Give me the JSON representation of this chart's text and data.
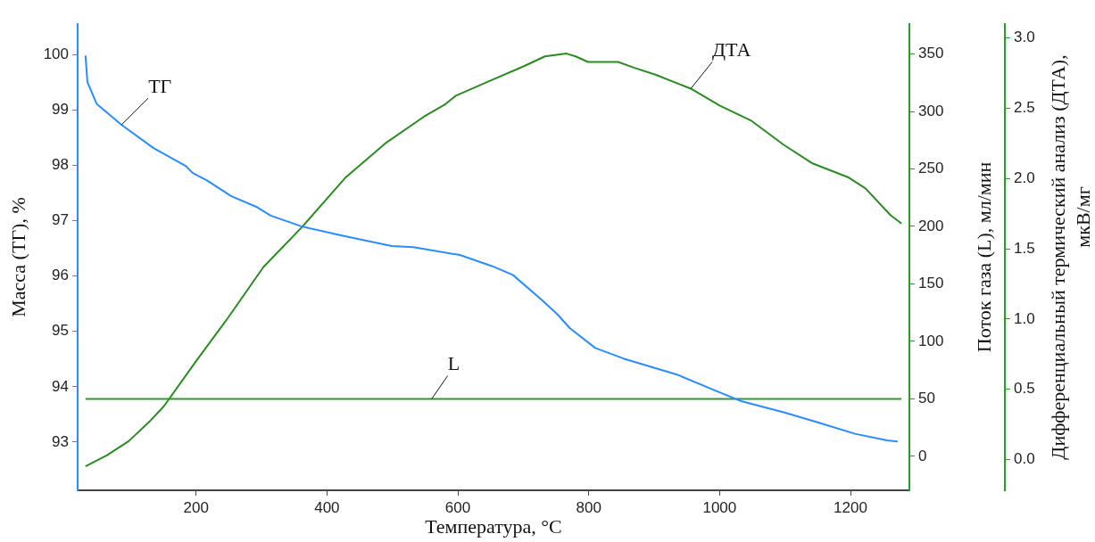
{
  "chart_data": {
    "type": "line",
    "xlabel": "Температура, °C",
    "ylabel": "Масса (ТГ), %",
    "y2label": "Поток газа (L), мл/мин",
    "y3label": "Дифференциальный термический анализ (ДТА), мкВ/мг",
    "xlim": [
      19,
      1290
    ],
    "xticks": [
      200,
      400,
      600,
      800,
      1000,
      1200
    ],
    "ylim": [
      92.13,
      100.55
    ],
    "yticks": [
      93,
      94,
      95,
      96,
      97,
      98,
      99,
      100
    ],
    "y2lim": [
      -29.5,
      376
    ],
    "y2ticks": [
      0,
      50,
      100,
      150,
      200,
      250,
      300,
      350
    ],
    "y3lim": [
      -0.22,
      3.1
    ],
    "y3ticks": [
      {
        "value": 0,
        "label": "0.0"
      },
      {
        "value": 0.5,
        "label": "0.5"
      },
      {
        "value": 1,
        "label": "1.0"
      },
      {
        "value": 1.5,
        "label": "1.5"
      },
      {
        "value": 2,
        "label": "2.0"
      },
      {
        "value": 2.5,
        "label": "2.5"
      },
      {
        "value": 3,
        "label": "3.0"
      }
    ],
    "marker": "none",
    "line_style": "solid",
    "series": [
      {
        "name": "ТГ",
        "color": "#2b8cff",
        "x": [
          31,
          34,
          48,
          86,
          135,
          184,
          195,
          216,
          254,
          292,
          314,
          363,
          423,
          499,
          532,
          603,
          652,
          684,
          728,
          752,
          771,
          810,
          853,
          935,
          1000,
          1033,
          1098,
          1152,
          1207,
          1256,
          1272
        ],
        "values": [
          99.98,
          99.5,
          99.11,
          98.73,
          98.31,
          97.99,
          97.86,
          97.73,
          97.44,
          97.25,
          97.09,
          96.89,
          96.73,
          96.54,
          96.52,
          96.38,
          96.18,
          96.02,
          95.57,
          95.31,
          95.06,
          94.7,
          94.51,
          94.22,
          93.9,
          93.74,
          93.54,
          93.35,
          93.15,
          93.03,
          93.01
        ]
      },
      {
        "name": "L",
        "color": "#2e9a2e",
        "axis": "y2",
        "x": [
          31,
          560,
          1278
        ],
        "values": [
          50,
          50,
          50
        ]
      },
      {
        "name": "ДТА",
        "color": "#2b8a22",
        "axis": "y3",
        "x": [
          31,
          64,
          97,
          129,
          151,
          200,
          249,
          303,
          361,
          429,
          489,
          548,
          581,
          597,
          646,
          701,
          733,
          766,
          780,
          799,
          815,
          845,
          869,
          902,
          956,
          1000,
          1049,
          1098,
          1141,
          1196,
          1223,
          1261,
          1278
        ],
        "values": [
          -0.05,
          0.03,
          0.13,
          0.27,
          0.38,
          0.7,
          1.01,
          1.37,
          1.65,
          2.01,
          2.25,
          2.44,
          2.53,
          2.59,
          2.69,
          2.8,
          2.87,
          2.89,
          2.87,
          2.83,
          2.83,
          2.83,
          2.79,
          2.74,
          2.64,
          2.52,
          2.41,
          2.24,
          2.11,
          2.01,
          1.93,
          1.74,
          1.68
        ]
      }
    ]
  }
}
